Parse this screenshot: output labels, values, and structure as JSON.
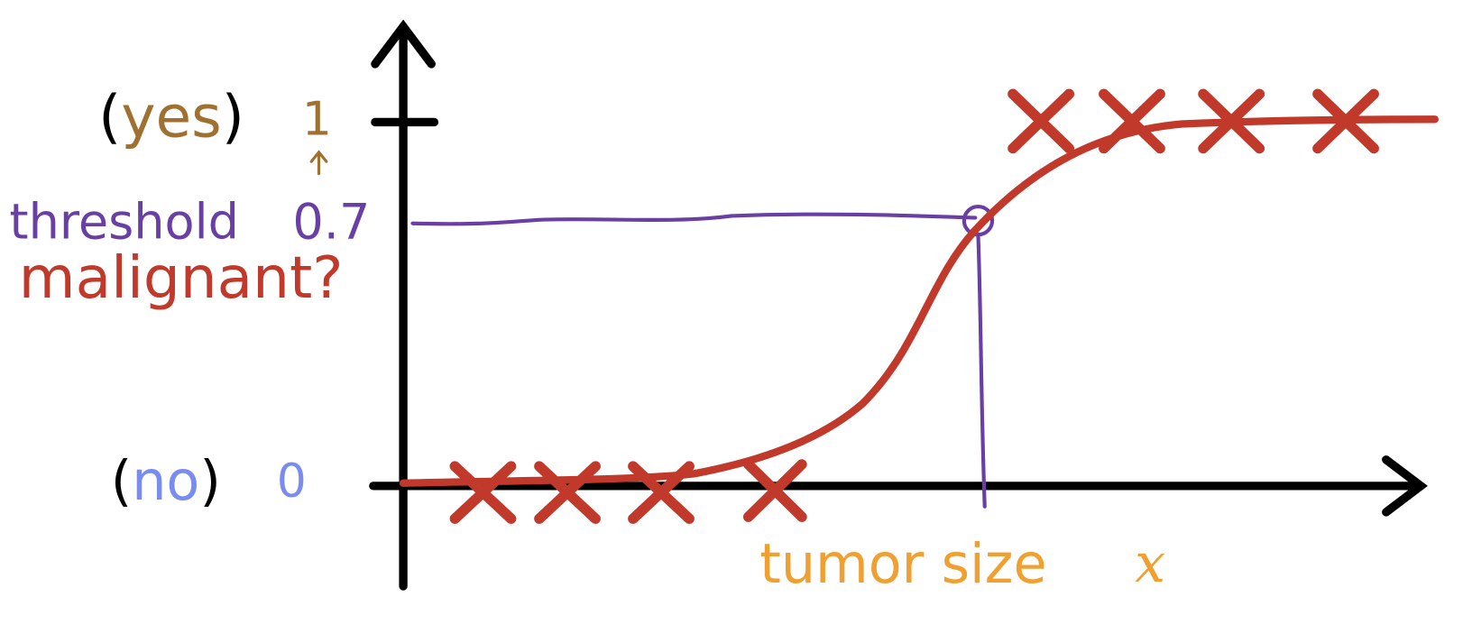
{
  "labels": {
    "yes": "(yes)",
    "one": "1",
    "threshold": "threshold",
    "threshold_value": "0.7",
    "y_axis": "malignant?",
    "no": "(no)",
    "zero": "0",
    "x_axis": "tumor size",
    "x_symbol": "x"
  }
}
